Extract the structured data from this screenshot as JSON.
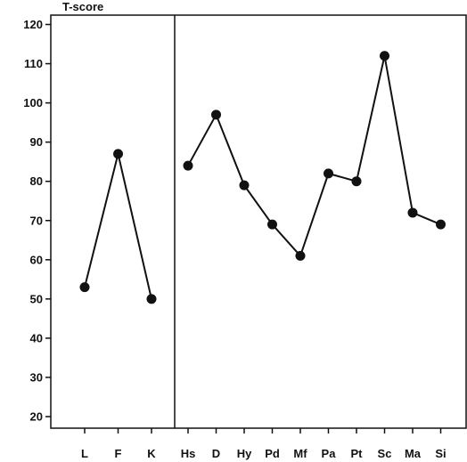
{
  "chart_data": {
    "type": "line",
    "title": "T-score",
    "ylim": [
      20,
      120
    ],
    "yticks": [
      "20",
      "30",
      "40",
      "50",
      "60",
      "70",
      "80",
      "90",
      "100",
      "110",
      "120"
    ],
    "grid": false,
    "panels": [
      {
        "categories": [
          "L",
          "F",
          "K"
        ],
        "values": [
          53,
          87,
          50
        ]
      },
      {
        "categories": [
          "Hs",
          "D",
          "Hy",
          "Pd",
          "Mf",
          "Pa",
          "Pt",
          "Sc",
          "Ma",
          "Si"
        ],
        "values": [
          84,
          97,
          79,
          69,
          61,
          82,
          80,
          112,
          72,
          69
        ]
      }
    ],
    "colors": {
      "line": "#111111",
      "marker": "#111111",
      "axis": "#111111"
    }
  }
}
